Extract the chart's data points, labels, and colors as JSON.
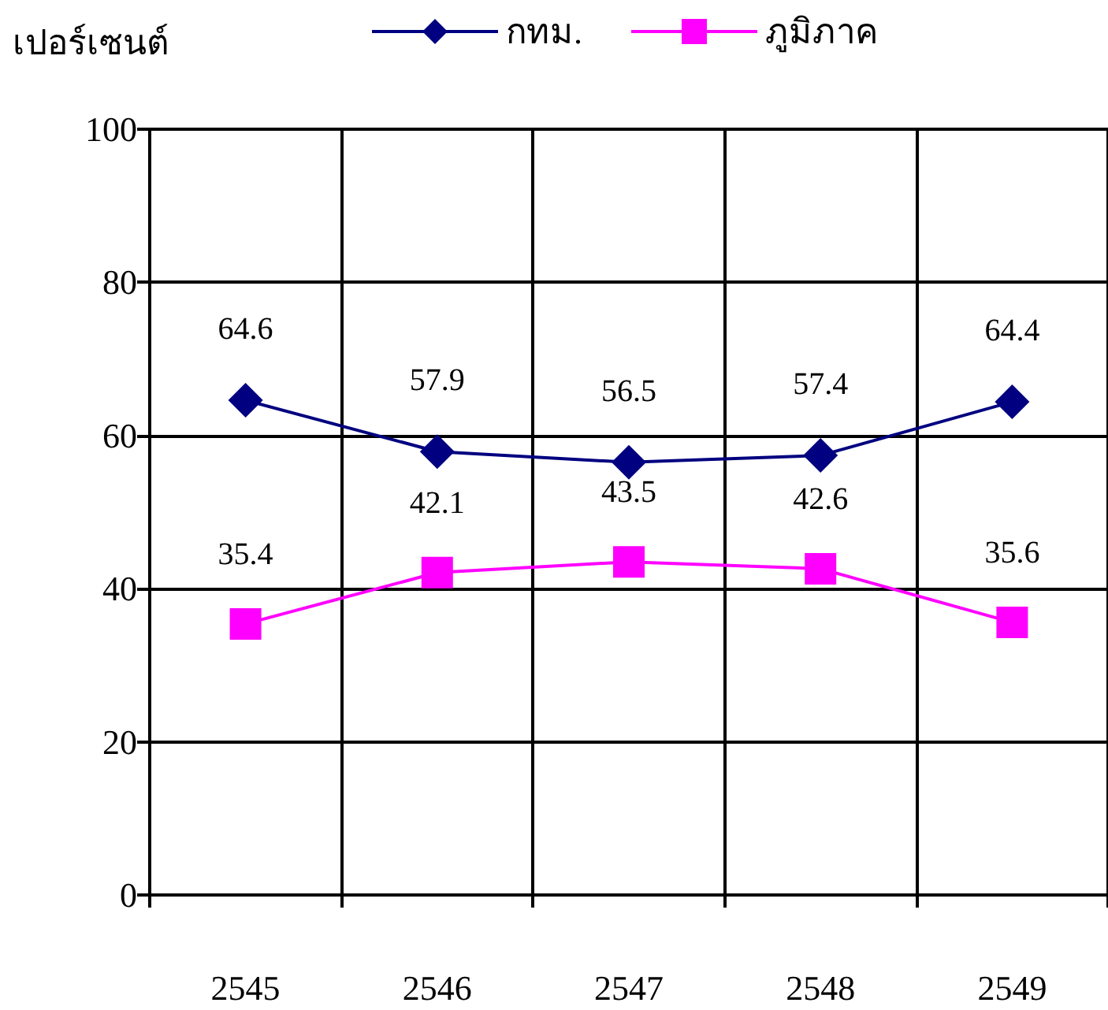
{
  "chart_data": {
    "type": "line",
    "ylabel": "เปอร์เซนต์",
    "categories": [
      "2545",
      "2546",
      "2547",
      "2548",
      "2549"
    ],
    "series": [
      {
        "name": "กทม.",
        "color": "#000080",
        "marker": "diamond",
        "values": [
          64.6,
          57.9,
          56.5,
          57.4,
          64.4
        ]
      },
      {
        "name": "ภูมิภาค",
        "color": "#ff00ff",
        "marker": "square",
        "values": [
          35.4,
          42.1,
          43.5,
          42.6,
          35.6
        ]
      }
    ],
    "ylim": [
      0,
      100
    ],
    "yticks": [
      0,
      20,
      40,
      60,
      80,
      100
    ],
    "grid": true,
    "legend": "top",
    "data_labels": true
  }
}
